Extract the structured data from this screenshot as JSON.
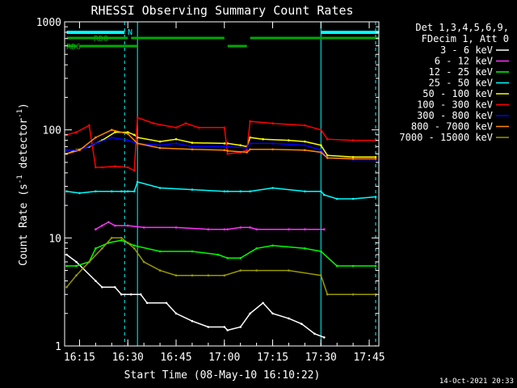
{
  "chart_data": {
    "type": "line",
    "title": "RHESSI Observing Summary Count Rates",
    "xlabel": "Start Time (08-May-10 16:10:22)",
    "ylabel": "Count Rate (s⁻¹ detector⁻¹)",
    "ylabel_main": "Count Rate (s",
    "ylabel_sup1": "-1",
    "ylabel_mid": " detector",
    "ylabel_sup2": "-1",
    "ylabel_end": ")",
    "y_scale": "log",
    "ylim": [
      1,
      1000
    ],
    "xlim": [
      "16:10:22",
      "17:48:30"
    ],
    "x_ticks": [
      "16:15",
      "16:30",
      "16:45",
      "17:00",
      "17:15",
      "17:30",
      "17:45"
    ],
    "y_ticks": [
      "1",
      "10",
      "100",
      "1000"
    ],
    "legend_header": [
      "Det 1,3,4,5,6,9,",
      "FDecim 1, Att 0"
    ],
    "legend_position": "right",
    "footer": "14-Oct-2021 20:33",
    "markers": {
      "rd0_label": "RD0",
      "rd6_label": "RD6",
      "n_label": "N"
    },
    "series": [
      {
        "name": "3 - 6 keV",
        "color": "#ffffff",
        "x": [
          "16:11",
          "16:14",
          "16:20",
          "16:22",
          "16:26",
          "16:28",
          "16:31",
          "16:34",
          "16:36",
          "16:42",
          "16:45",
          "16:50",
          "16:55",
          "17:00",
          "17:01",
          "17:05",
          "17:08",
          "17:12",
          "17:15",
          "17:20",
          "17:24",
          "17:28",
          "17:31"
        ],
        "values": [
          7,
          6,
          4,
          3.5,
          3.5,
          3,
          3,
          3,
          2.5,
          2.5,
          2,
          1.7,
          1.5,
          1.5,
          1.4,
          1.5,
          2,
          2.5,
          2,
          1.8,
          1.6,
          1.3,
          1.2
        ]
      },
      {
        "name": "6 - 12 keV",
        "color": "#ff33ff",
        "x": [
          "16:20",
          "16:22",
          "16:24",
          "16:26",
          "16:30",
          "16:35",
          "16:45",
          "16:55",
          "17:00",
          "17:01",
          "17:05",
          "17:08",
          "17:10",
          "17:20",
          "17:25",
          "17:31"
        ],
        "values": [
          12,
          13,
          14,
          13,
          13,
          12.5,
          12.5,
          12,
          12,
          12,
          12.5,
          12.5,
          12,
          12,
          12,
          12
        ]
      },
      {
        "name": "12 - 25 keV",
        "color": "#00ff00",
        "x": [
          "16:11",
          "16:14",
          "16:18",
          "16:20",
          "16:24",
          "16:28",
          "16:30",
          "16:32",
          "16:40",
          "16:50",
          "16:58",
          "17:01",
          "17:05",
          "17:10",
          "17:15",
          "17:25",
          "17:30",
          "17:35",
          "17:40",
          "17:47"
        ],
        "values": [
          5.5,
          5.5,
          6,
          8,
          9,
          9.5,
          9,
          8.5,
          7.5,
          7.5,
          7,
          6.5,
          6.5,
          8,
          8.5,
          8,
          7.5,
          5.5,
          5.5,
          5.5
        ]
      },
      {
        "name": "25 - 50 keV",
        "color": "#00ffff",
        "x": [
          "16:11",
          "16:15",
          "16:20",
          "16:25",
          "16:28",
          "16:30",
          "16:32",
          "16:33",
          "16:40",
          "16:50",
          "17:00",
          "17:01",
          "17:05",
          "17:08",
          "17:15",
          "17:25",
          "17:30",
          "17:31",
          "17:35",
          "17:40",
          "17:47"
        ],
        "values": [
          27,
          26,
          27,
          27,
          27,
          27,
          27,
          33,
          29,
          28,
          27,
          27,
          27,
          27,
          29,
          27,
          27,
          25,
          23,
          23,
          24
        ]
      },
      {
        "name": "50 - 100 keV",
        "color": "#ffff00",
        "x": [
          "16:11",
          "16:14",
          "16:18",
          "16:22",
          "16:26",
          "16:30",
          "16:32",
          "16:33",
          "16:40",
          "16:45",
          "16:50",
          "17:00",
          "17:01",
          "17:05",
          "17:07",
          "17:08",
          "17:12",
          "17:20",
          "17:25",
          "17:30",
          "17:32",
          "17:40",
          "17:47"
        ],
        "values": [
          60,
          65,
          70,
          80,
          95,
          95,
          90,
          85,
          78,
          82,
          76,
          75,
          75,
          72,
          70,
          85,
          82,
          80,
          78,
          72,
          58,
          56,
          56
        ]
      },
      {
        "name": "100 - 300 keV",
        "color": "#ff0000",
        "x": [
          "16:11",
          "16:14",
          "16:18",
          "16:20",
          "16:22",
          "16:26",
          "16:30",
          "16:32",
          "16:33",
          "16:38",
          "16:45",
          "16:48",
          "16:52",
          "17:00",
          "17:01",
          "17:05",
          "17:07",
          "17:08",
          "17:15",
          "17:25",
          "17:30",
          "17:32",
          "17:40",
          "17:47"
        ],
        "values": [
          90,
          95,
          110,
          45,
          45,
          46,
          45,
          42,
          130,
          115,
          105,
          115,
          105,
          105,
          60,
          62,
          65,
          120,
          115,
          110,
          100,
          82,
          80,
          80
        ]
      },
      {
        "name": "300 - 800 keV",
        "color": "#0000ff",
        "x": [
          "16:11",
          "16:15",
          "16:20",
          "16:25",
          "16:30",
          "16:33",
          "16:40",
          "16:45",
          "16:50",
          "17:00",
          "17:01",
          "17:07",
          "17:08",
          "17:15",
          "17:25",
          "17:30",
          "17:32",
          "17:40",
          "17:47"
        ],
        "values": [
          65,
          65,
          75,
          85,
          80,
          75,
          72,
          75,
          70,
          70,
          70,
          68,
          75,
          75,
          72,
          65,
          55,
          53,
          53
        ]
      },
      {
        "name": "800 - 7000 keV",
        "color": "#ff8800",
        "x": [
          "16:11",
          "16:15",
          "16:20",
          "16:25",
          "16:30",
          "16:33",
          "16:40",
          "16:50",
          "17:00",
          "17:01",
          "17:07",
          "17:08",
          "17:15",
          "17:25",
          "17:30",
          "17:32",
          "17:40",
          "17:47"
        ],
        "values": [
          60,
          65,
          85,
          100,
          92,
          75,
          68,
          66,
          65,
          64,
          62,
          66,
          66,
          65,
          62,
          55,
          54,
          54
        ]
      },
      {
        "name": "7000 - 15000 keV",
        "color": "#999900",
        "x": [
          "16:11",
          "16:14",
          "16:18",
          "16:22",
          "16:25",
          "16:28",
          "16:30",
          "16:32",
          "16:35",
          "16:40",
          "16:45",
          "16:50",
          "16:55",
          "17:00",
          "17:05",
          "17:10",
          "17:20",
          "17:30",
          "17:32",
          "17:40",
          "17:47"
        ],
        "values": [
          3.5,
          4.5,
          6,
          8,
          10,
          10,
          9,
          8,
          6,
          5,
          4.5,
          4.5,
          4.5,
          4.5,
          5,
          5,
          5,
          4.5,
          3,
          3,
          3
        ]
      }
    ],
    "attenuator_markers": {
      "rd0_segments": [
        [
          "16:11",
          "16:30"
        ],
        [
          "16:31",
          "17:00"
        ],
        [
          "17:08",
          "17:48"
        ]
      ],
      "rd6_segments": [
        [
          "16:11",
          "16:14"
        ],
        [
          "16:15",
          "16:33"
        ],
        [
          "17:01",
          "17:07"
        ]
      ],
      "n_segments": [
        [
          "16:11",
          "16:29"
        ],
        [
          "17:30",
          "17:48"
        ]
      ],
      "dashed_times": [
        "16:29",
        "17:47"
      ],
      "solid_times": [
        "16:33",
        "17:30"
      ],
      "colors": {
        "rd": "#00aa00",
        "n": "#00ffff"
      }
    }
  }
}
